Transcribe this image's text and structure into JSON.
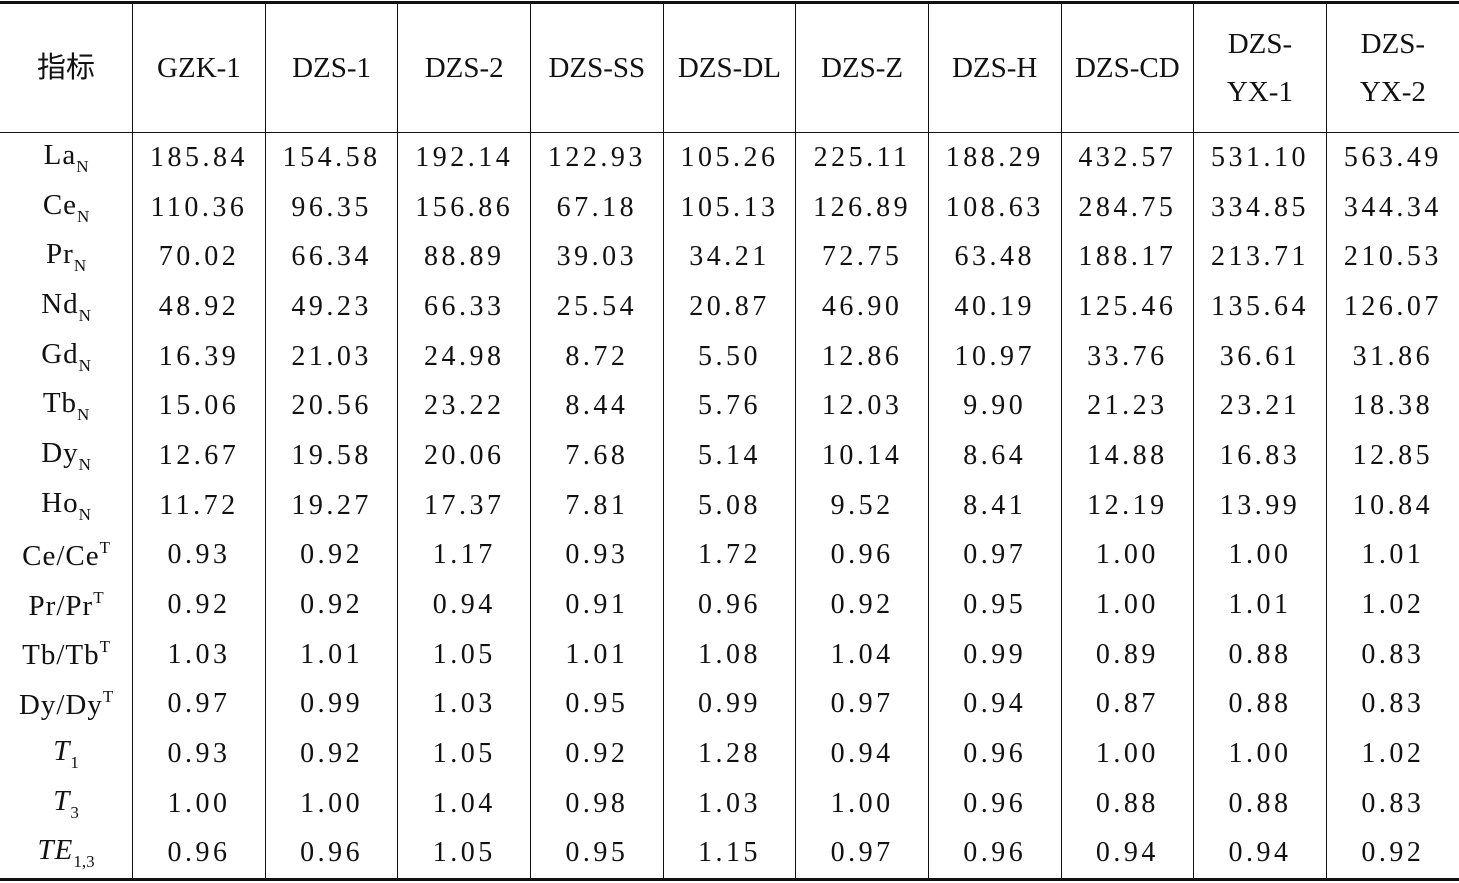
{
  "table": {
    "header": [
      "指标",
      "GZK-1",
      "DZS-1",
      "DZS-2",
      "DZS-SS",
      "DZS-DL",
      "DZS-Z",
      "DZS-H",
      "DZS-CD",
      [
        "DZS-",
        "YX-1"
      ],
      [
        "DZS-",
        "YX-2"
      ]
    ],
    "rows": [
      {
        "label": {
          "base": "La",
          "sub": "N"
        },
        "values": [
          "185.84",
          "154.58",
          "192.14",
          "122.93",
          "105.26",
          "225.11",
          "188.29",
          "432.57",
          "531.10",
          "563.49"
        ]
      },
      {
        "label": {
          "base": "Ce",
          "sub": "N"
        },
        "values": [
          "110.36",
          "96.35",
          "156.86",
          "67.18",
          "105.13",
          "126.89",
          "108.63",
          "284.75",
          "334.85",
          "344.34"
        ]
      },
      {
        "label": {
          "base": "Pr",
          "sub": "N"
        },
        "values": [
          "70.02",
          "66.34",
          "88.89",
          "39.03",
          "34.21",
          "72.75",
          "63.48",
          "188.17",
          "213.71",
          "210.53"
        ]
      },
      {
        "label": {
          "base": "Nd",
          "sub": "N"
        },
        "values": [
          "48.92",
          "49.23",
          "66.33",
          "25.54",
          "20.87",
          "46.90",
          "40.19",
          "125.46",
          "135.64",
          "126.07"
        ]
      },
      {
        "label": {
          "base": "Gd",
          "sub": "N"
        },
        "values": [
          "16.39",
          "21.03",
          "24.98",
          "8.72",
          "5.50",
          "12.86",
          "10.97",
          "33.76",
          "36.61",
          "31.86"
        ]
      },
      {
        "label": {
          "base": "Tb",
          "sub": "N"
        },
        "values": [
          "15.06",
          "20.56",
          "23.22",
          "8.44",
          "5.76",
          "12.03",
          "9.90",
          "21.23",
          "23.21",
          "18.38"
        ]
      },
      {
        "label": {
          "base": "Dy",
          "sub": "N"
        },
        "values": [
          "12.67",
          "19.58",
          "20.06",
          "7.68",
          "5.14",
          "10.14",
          "8.64",
          "14.88",
          "16.83",
          "12.85"
        ]
      },
      {
        "label": {
          "base": "Ho",
          "sub": "N"
        },
        "values": [
          "11.72",
          "19.27",
          "17.37",
          "7.81",
          "5.08",
          "9.52",
          "8.41",
          "12.19",
          "13.99",
          "10.84"
        ]
      },
      {
        "label": {
          "base": "Ce/Ce",
          "sup": "T"
        },
        "values": [
          "0.93",
          "0.92",
          "1.17",
          "0.93",
          "1.72",
          "0.96",
          "0.97",
          "1.00",
          "1.00",
          "1.01"
        ]
      },
      {
        "label": {
          "base": "Pr/Pr",
          "sup": "T"
        },
        "values": [
          "0.92",
          "0.92",
          "0.94",
          "0.91",
          "0.96",
          "0.92",
          "0.95",
          "1.00",
          "1.01",
          "1.02"
        ]
      },
      {
        "label": {
          "base": "Tb/Tb",
          "sup": "T"
        },
        "values": [
          "1.03",
          "1.01",
          "1.05",
          "1.01",
          "1.08",
          "1.04",
          "0.99",
          "0.89",
          "0.88",
          "0.83"
        ]
      },
      {
        "label": {
          "base": "Dy/Dy",
          "sup": "T"
        },
        "values": [
          "0.97",
          "0.99",
          "1.03",
          "0.95",
          "0.99",
          "0.97",
          "0.94",
          "0.87",
          "0.88",
          "0.83"
        ]
      },
      {
        "label": {
          "base": "T",
          "sub": "1",
          "italic": true
        },
        "values": [
          "0.93",
          "0.92",
          "1.05",
          "0.92",
          "1.28",
          "0.94",
          "0.96",
          "1.00",
          "1.00",
          "1.02"
        ]
      },
      {
        "label": {
          "base": "T",
          "sub": "3",
          "italic": true
        },
        "values": [
          "1.00",
          "1.00",
          "1.04",
          "0.98",
          "1.03",
          "1.00",
          "0.96",
          "0.88",
          "0.88",
          "0.83"
        ]
      },
      {
        "label": {
          "base": "TE",
          "sub": "1,3",
          "italic": true
        },
        "values": [
          "0.96",
          "0.96",
          "1.05",
          "0.95",
          "1.15",
          "0.97",
          "0.96",
          "0.94",
          "0.94",
          "0.92"
        ]
      }
    ]
  }
}
